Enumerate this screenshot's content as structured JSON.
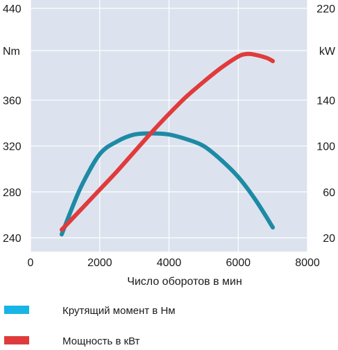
{
  "chart_data": {
    "type": "line",
    "xlabel": "Число оборотов в мин",
    "x_ticks": [
      0,
      2000,
      4000,
      6000,
      8000
    ],
    "xlim": [
      0,
      8000
    ],
    "y_left": {
      "unit": "Nm",
      "ticks": [
        240,
        280,
        320,
        360,
        440
      ],
      "ylim": [
        228,
        440
      ]
    },
    "y_right": {
      "unit": "kW",
      "ticks": [
        20,
        60,
        100,
        140,
        220
      ],
      "ylim": [
        8,
        220
      ]
    },
    "background_color": "#dce3ee",
    "grid": true,
    "series": [
      {
        "name": "Крутящий момент в Нм",
        "axis": "left",
        "color": "#1e8aa5",
        "x": [
          900,
          1200,
          1500,
          2000,
          2500,
          3000,
          3500,
          4000,
          4500,
          5000,
          5500,
          6000,
          6500,
          7000
        ],
        "y": [
          243,
          266,
          287,
          313,
          324,
          330,
          331,
          330,
          326,
          320,
          308,
          293,
          273,
          249
        ]
      },
      {
        "name": "Мощность в кВт",
        "axis": "right",
        "color": "#e03b3c",
        "x": [
          900,
          1500,
          2000,
          2500,
          3000,
          3500,
          4000,
          4500,
          5000,
          5500,
          6000,
          6200,
          6400,
          6800,
          7000
        ],
        "y": [
          27,
          46,
          62,
          78,
          95,
          112,
          128,
          143,
          156,
          168,
          178,
          180,
          180,
          177,
          174
        ]
      }
    ],
    "legend": {
      "placement": "bottom",
      "items": [
        "Крутящий момент в Нм",
        "Мощность в кВт"
      ]
    }
  }
}
